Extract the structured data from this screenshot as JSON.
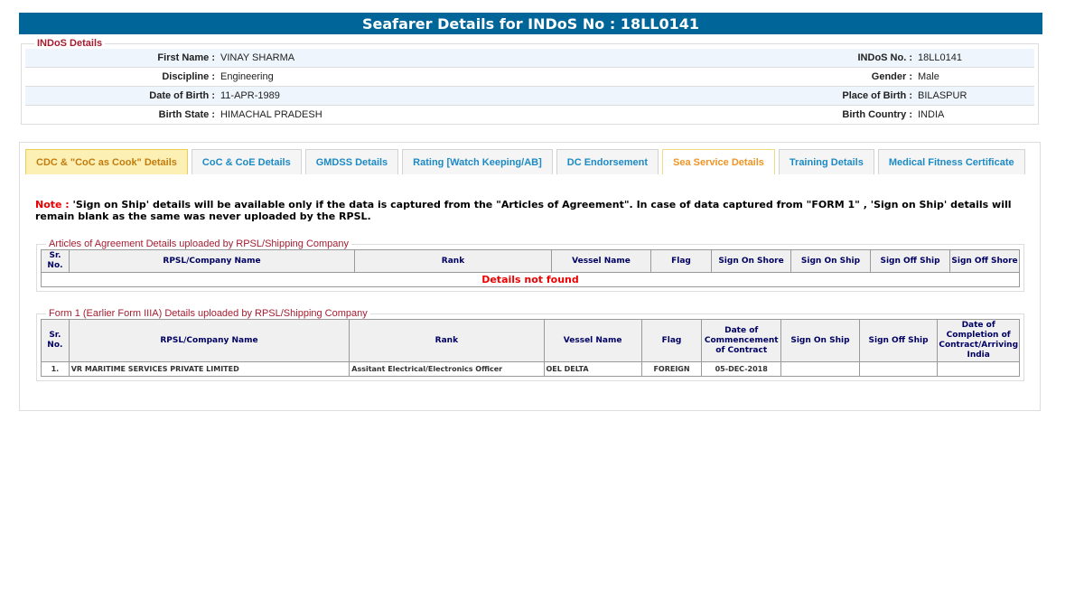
{
  "header": {
    "title": "Seafarer Details for INDoS No : 18LL0141"
  },
  "indos": {
    "legend": "INDoS Details",
    "rows": [
      [
        "First Name :",
        "VINAY SHARMA",
        "INDoS No. :",
        "18LL0141"
      ],
      [
        "Discipline :",
        "Engineering",
        "Gender :",
        "Male"
      ],
      [
        "Date of Birth :",
        "11-APR-1989",
        "Place of Birth :",
        "BILASPUR"
      ],
      [
        "Birth State :",
        "HIMACHAL PRADESH",
        "Birth Country :",
        "INDIA"
      ]
    ]
  },
  "tabs": [
    "CDC & \"CoC as Cook\" Details",
    "CoC & CoE Details",
    "GMDSS Details",
    "Rating [Watch Keeping/AB]",
    "DC Endorsement",
    "Sea Service Details",
    "Training Details",
    "Medical Fitness Certificate"
  ],
  "active_tab": "Sea Service Details",
  "note": {
    "label": "Note :",
    "text": " 'Sign on Ship' details will be available only if the data is captured from the \"Articles of Agreement\". In case of data captured from \"FORM 1\" , 'Sign on Ship' details will remain blank as the same was never uploaded by the RPSL."
  },
  "articles": {
    "legend": "Articles of Agreement Details uploaded by RPSL/Shipping Company",
    "columns": [
      "Sr. No.",
      "RPSL/Company Name",
      "Rank",
      "Vessel Name",
      "Flag",
      "Sign On Shore",
      "Sign On Ship",
      "Sign Off Ship",
      "Sign Off Shore"
    ],
    "empty": "Details not found"
  },
  "form1": {
    "legend": "Form 1 (Earlier Form IIIA) Details uploaded by RPSL/Shipping Company",
    "columns": [
      "Sr. No.",
      "RPSL/Company Name",
      "Rank",
      "Vessel Name",
      "Flag",
      "Date of Commencement of Contract",
      "Sign On Ship",
      "Sign Off Ship",
      "Date of Completion of Contract/Arriving India"
    ],
    "rows": [
      [
        "1.",
        "VR MARITIME SERVICES PRIVATE LIMITED",
        "Assitant Electrical/Electronics Officer",
        "OEL DELTA",
        "FOREIGN",
        "05-DEC-2018",
        "",
        "",
        ""
      ]
    ]
  }
}
